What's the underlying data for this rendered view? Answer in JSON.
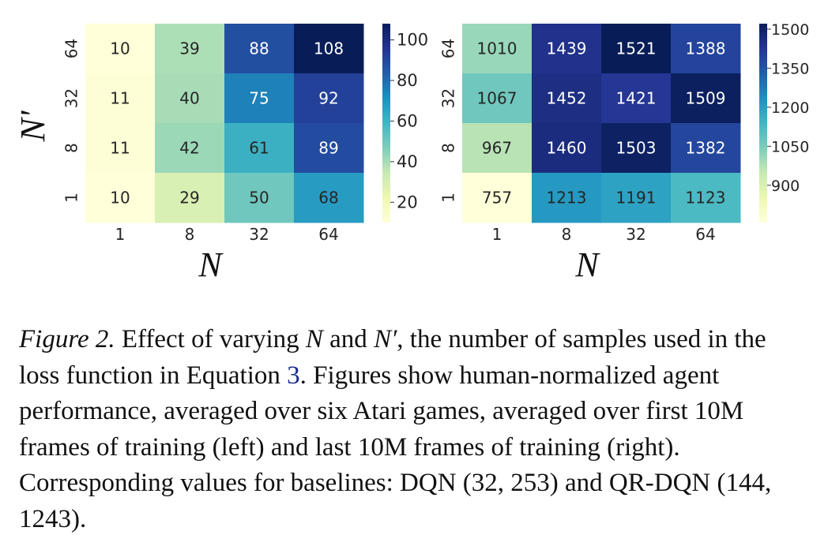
{
  "chart_data": [
    {
      "type": "heatmap",
      "title": "",
      "xlabel": "N",
      "ylabel": "N'",
      "x_categories": [
        "1",
        "8",
        "32",
        "64"
      ],
      "y_categories": [
        "64",
        "32",
        "8",
        "1"
      ],
      "values": [
        [
          10,
          39,
          88,
          108
        ],
        [
          11,
          40,
          75,
          92
        ],
        [
          11,
          42,
          61,
          89
        ],
        [
          10,
          29,
          50,
          68
        ]
      ],
      "vmin": 10,
      "vmax": 108,
      "colorbar_ticks": [
        100,
        80,
        60,
        40,
        20
      ],
      "colormap": "YlGnBu"
    },
    {
      "type": "heatmap",
      "title": "",
      "xlabel": "N",
      "ylabel": "",
      "x_categories": [
        "1",
        "8",
        "32",
        "64"
      ],
      "y_categories": [
        "64",
        "32",
        "8",
        "1"
      ],
      "values": [
        [
          1010,
          1439,
          1521,
          1388
        ],
        [
          1067,
          1452,
          1421,
          1509
        ],
        [
          967,
          1460,
          1503,
          1382
        ],
        [
          757,
          1213,
          1191,
          1123
        ]
      ],
      "vmin": 757,
      "vmax": 1521,
      "colorbar_ticks": [
        1500,
        1350,
        1200,
        1050,
        900
      ],
      "colormap": "YlGnBu"
    }
  ],
  "caption": {
    "label": "Figure 2.",
    "text_1": " Effect of varying ",
    "sym_n": "N",
    "text_2": " and ",
    "sym_nprime": "N′",
    "text_3": ", the number of samples used in the loss function in Equation ",
    "equation_ref": "3",
    "text_4": ". Figures show human-normalized agent performance, averaged over six Atari games, averaged over first 10M frames of training (left) and last 10M frames of training (right). Corresponding values for baselines: DQN (32, 253) and QR-DQN (144, 1243)."
  }
}
